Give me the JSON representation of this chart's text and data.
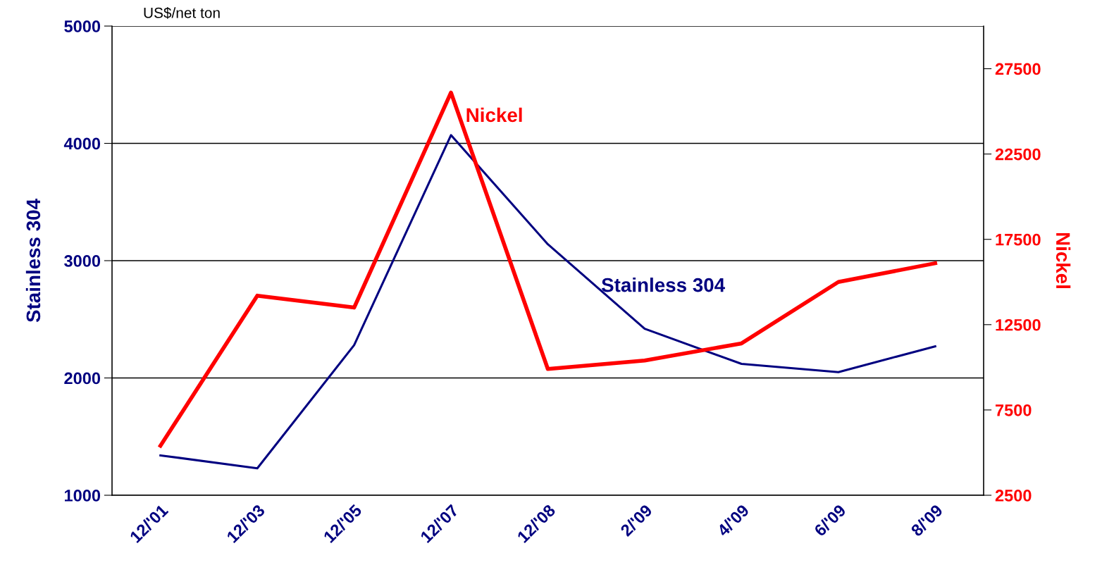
{
  "chart_data": {
    "type": "line",
    "categories": [
      "12/'01",
      "12/'03",
      "12/'05",
      "12/'07",
      "12/'08",
      "2/'09",
      "4/'09",
      "6/'09",
      "8/'09"
    ],
    "series": [
      {
        "name": "Stainless 304",
        "color": "#000080",
        "values": [
          1340,
          1230,
          2280,
          4070,
          3140,
          2420,
          2120,
          2050,
          2270
        ]
      },
      {
        "name": "Nickel",
        "color": "#ff0000",
        "axis": "y2",
        "values": [
          5400,
          14200,
          13500,
          26100,
          9900,
          10400,
          11400,
          15000,
          16100
        ]
      }
    ],
    "ylabel": "Stainless 304",
    "y2label": "Nickel",
    "ylim": [
      1000,
      5000
    ],
    "yticks": [
      1000,
      2000,
      3000,
      4000,
      5000
    ],
    "y2lim": [
      2500,
      30000
    ],
    "y2ticks": [
      2500,
      7500,
      12500,
      17500,
      22500,
      27500
    ],
    "annotations": [
      "US$/net ton"
    ],
    "grid": "y",
    "legend": false,
    "marker": "none",
    "line_style": "solid"
  }
}
